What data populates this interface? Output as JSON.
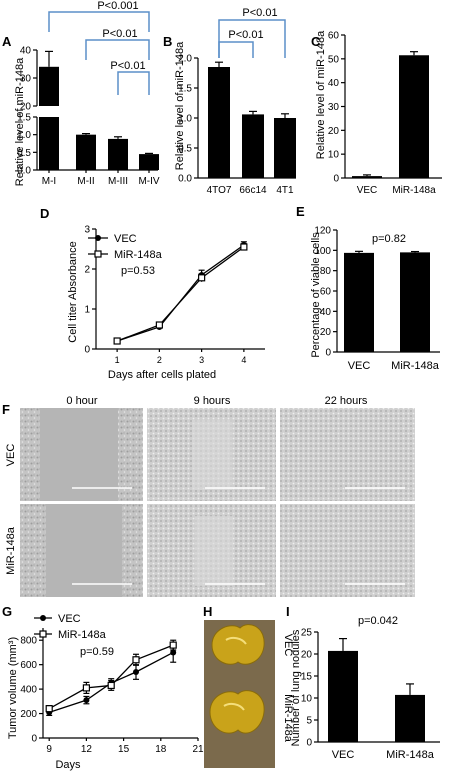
{
  "panel_letters": [
    "A",
    "B",
    "C",
    "D",
    "E",
    "F",
    "G",
    "H",
    "I"
  ],
  "chart_data": [
    {
      "panel": "A",
      "type": "bar",
      "ylabel": "Relative level of miR-148a",
      "categories": [
        "M-I",
        "M-II",
        "M-III",
        "M-IV"
      ],
      "values": [
        34,
        1.0,
        0.88,
        0.45
      ],
      "errors": [
        5.5,
        0.03,
        0.06,
        0.02
      ],
      "axis_break": {
        "lower_ylim": [
          0,
          1.5
        ],
        "upper_ylim": [
          20,
          40
        ]
      },
      "lower_ticks": [
        "0.0",
        "0.5",
        "1.0",
        "1.5"
      ],
      "upper_ticks": [
        "20",
        "30",
        "40"
      ],
      "annotations": [
        "P<0.001",
        "P<0.01",
        "P<0.01"
      ],
      "color": "#000000"
    },
    {
      "panel": "B",
      "type": "bar",
      "ylabel": "Relative level of miR-148a",
      "categories": [
        "4TO7",
        "66c14",
        "4T1"
      ],
      "values": [
        1.85,
        1.06,
        1.0
      ],
      "errors": [
        0.08,
        0.05,
        0.07
      ],
      "ylim": [
        0,
        2.0
      ],
      "ticks": [
        "0.0",
        "0.5",
        "1.0",
        "1.5",
        "2.0"
      ],
      "annotations": [
        "P<0.01",
        "P<0.01"
      ],
      "color": "#000000"
    },
    {
      "panel": "C",
      "type": "bar",
      "ylabel": "Relative level of miR-148a",
      "categories": [
        "VEC",
        "MiR-148a"
      ],
      "values": [
        0.8,
        51.5
      ],
      "errors": [
        0.5,
        1.5
      ],
      "ylim": [
        0,
        60
      ],
      "ticks": [
        "0",
        "10",
        "20",
        "30",
        "40",
        "50",
        "60"
      ],
      "color": "#000000"
    },
    {
      "panel": "D",
      "type": "line",
      "ylabel": "Cell titer Absorbance",
      "xlabel": "Days after cells plated",
      "x": [
        1,
        2,
        3,
        4
      ],
      "xlim": [
        0.5,
        4.5
      ],
      "ylim": [
        0,
        3
      ],
      "ticks_y": [
        "0",
        "1",
        "2",
        "3"
      ],
      "ticks_x": [
        "1",
        "2",
        "3",
        "4"
      ],
      "series": [
        {
          "name": "VEC",
          "values": [
            0.2,
            0.55,
            1.85,
            2.6
          ],
          "errors": [
            0.03,
            0.05,
            0.12,
            0.08
          ],
          "marker": "filled-circle"
        },
        {
          "name": "MiR-148a",
          "values": [
            0.2,
            0.6,
            1.78,
            2.55
          ],
          "errors": [
            0.03,
            0.05,
            0.1,
            0.08
          ],
          "marker": "open-square"
        }
      ],
      "annotations": [
        "p=0.53"
      ]
    },
    {
      "panel": "E",
      "type": "bar",
      "ylabel": "Percentage of viable cells",
      "categories": [
        "VEC",
        "MiR-148a"
      ],
      "values": [
        97.5,
        98.0
      ],
      "errors": [
        1.5,
        0.8
      ],
      "ylim": [
        0,
        120
      ],
      "ticks": [
        "0",
        "20",
        "40",
        "60",
        "80",
        "100",
        "120"
      ],
      "annotations": [
        "p=0.82"
      ],
      "color": "#000000"
    },
    {
      "panel": "G",
      "type": "line",
      "ylabel": "Tumor volume (mm³)",
      "xlabel": "Days",
      "x": [
        9,
        12,
        14,
        16,
        19
      ],
      "xlim": [
        8.5,
        21
      ],
      "ylim": [
        0,
        900
      ],
      "ticks_y": [
        "0",
        "200",
        "400",
        "600",
        "800"
      ],
      "ticks_x": [
        "9",
        "12",
        "15",
        "18",
        "21"
      ],
      "series": [
        {
          "name": "VEC",
          "values": [
            210,
            310,
            450,
            540,
            700
          ],
          "errors": [
            25,
            30,
            35,
            60,
            80
          ],
          "marker": "filled-circle"
        },
        {
          "name": "MiR-148a",
          "values": [
            240,
            410,
            430,
            640,
            760
          ],
          "errors": [
            25,
            45,
            40,
            45,
            40
          ],
          "marker": "open-square"
        }
      ],
      "annotations": [
        "p=0.59"
      ]
    },
    {
      "panel": "I",
      "type": "bar",
      "ylabel": "Number of lung nodules",
      "categories": [
        "VEC",
        "MiR-148a"
      ],
      "values": [
        20.7,
        10.7
      ],
      "errors": [
        2.8,
        2.5
      ],
      "ylim": [
        0,
        25
      ],
      "ticks": [
        "0",
        "5",
        "10",
        "15",
        "20",
        "25"
      ],
      "annotations": [
        "p=0.042"
      ],
      "color": "#000000"
    }
  ],
  "panel_F": {
    "column_headers": [
      "0 hour",
      "9 hours",
      "22 hours"
    ],
    "row_labels": [
      "VEC",
      "MiR-148a"
    ]
  },
  "panel_H": {
    "row_labels": [
      "VEC",
      "MiR-148a"
    ]
  },
  "colors": {
    "bracket": "#5b8fc9",
    "bar": "#000000",
    "photo_bg": "#c7c7c7",
    "lung": "#c9a31a",
    "lung_bg": "#7b6a4c"
  }
}
